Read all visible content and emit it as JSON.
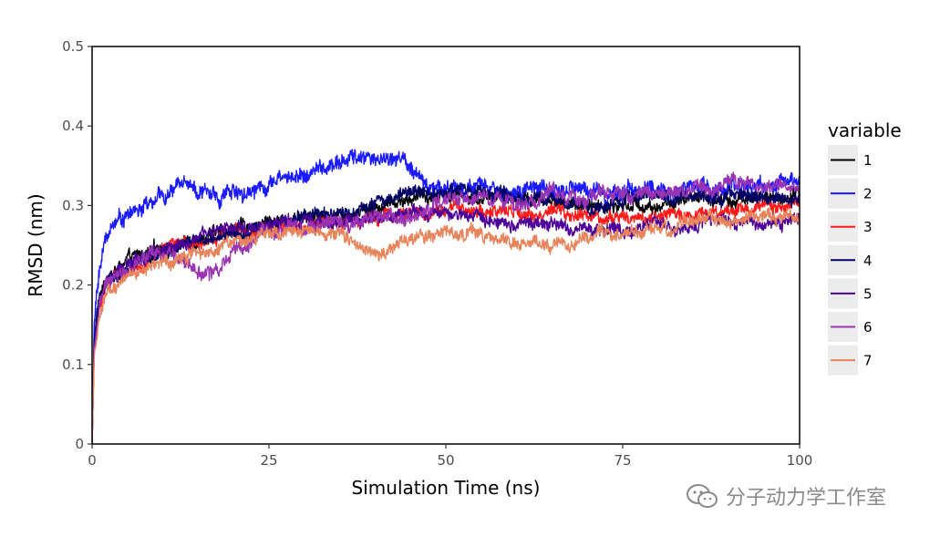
{
  "chart_data": {
    "type": "line",
    "title": "",
    "xlabel": "Simulation Time (ns)",
    "ylabel": "RMSD (nm)",
    "xlim": [
      0,
      100
    ],
    "ylim": [
      0,
      0.5
    ],
    "xticks": [
      0,
      25,
      50,
      75,
      100
    ],
    "xtick_labels": [
      "0",
      "25",
      "50",
      "75",
      "100"
    ],
    "yticks": [
      0,
      0.1,
      0.2,
      0.3,
      0.4,
      0.5
    ],
    "ytick_labels": [
      "0",
      "0.1",
      "0.2",
      "0.3",
      "0.4",
      "0.5"
    ],
    "grid": false,
    "legend": {
      "title": "variable",
      "position": "right"
    },
    "series": [
      {
        "name": "1",
        "color": "#000000",
        "noise": 0.008,
        "x": [
          0,
          0.3,
          1,
          2,
          5,
          10,
          15,
          20,
          25,
          30,
          35,
          40,
          45,
          50,
          55,
          60,
          65,
          70,
          75,
          80,
          85,
          90,
          95,
          100
        ],
        "y": [
          0,
          0.13,
          0.18,
          0.21,
          0.23,
          0.245,
          0.26,
          0.27,
          0.28,
          0.285,
          0.29,
          0.3,
          0.31,
          0.315,
          0.31,
          0.31,
          0.305,
          0.3,
          0.3,
          0.3,
          0.305,
          0.31,
          0.31,
          0.31
        ]
      },
      {
        "name": "2",
        "color": "#1a1aff",
        "noise": 0.01,
        "x": [
          0,
          0.3,
          1,
          2,
          3,
          5,
          8,
          10,
          12,
          13,
          15,
          18,
          20,
          22,
          25,
          30,
          35,
          37,
          40,
          44,
          46,
          48,
          50,
          55,
          60,
          65,
          70,
          75,
          80,
          85,
          90,
          95,
          100
        ],
        "y": [
          0,
          0.15,
          0.22,
          0.26,
          0.28,
          0.29,
          0.3,
          0.31,
          0.32,
          0.34,
          0.32,
          0.31,
          0.32,
          0.32,
          0.33,
          0.34,
          0.35,
          0.36,
          0.36,
          0.36,
          0.33,
          0.325,
          0.325,
          0.32,
          0.315,
          0.32,
          0.32,
          0.32,
          0.32,
          0.32,
          0.325,
          0.325,
          0.33
        ]
      },
      {
        "name": "3",
        "color": "#ff1a1a",
        "noise": 0.008,
        "x": [
          0,
          0.3,
          1,
          2,
          5,
          10,
          15,
          20,
          25,
          30,
          35,
          40,
          45,
          50,
          55,
          60,
          65,
          70,
          75,
          80,
          85,
          90,
          95,
          100
        ],
        "y": [
          0,
          0.12,
          0.17,
          0.2,
          0.22,
          0.24,
          0.255,
          0.265,
          0.27,
          0.275,
          0.28,
          0.285,
          0.29,
          0.295,
          0.295,
          0.29,
          0.29,
          0.285,
          0.285,
          0.285,
          0.29,
          0.295,
          0.3,
          0.3
        ]
      },
      {
        "name": "4",
        "color": "#000066",
        "noise": 0.008,
        "x": [
          0,
          0.3,
          1,
          2,
          5,
          10,
          15,
          20,
          25,
          30,
          35,
          40,
          45,
          50,
          55,
          60,
          65,
          70,
          75,
          80,
          85,
          90,
          95,
          100
        ],
        "y": [
          0,
          0.13,
          0.18,
          0.2,
          0.22,
          0.24,
          0.255,
          0.265,
          0.275,
          0.285,
          0.29,
          0.3,
          0.315,
          0.32,
          0.315,
          0.31,
          0.305,
          0.3,
          0.305,
          0.31,
          0.31,
          0.315,
          0.31,
          0.305
        ]
      },
      {
        "name": "5",
        "color": "#4d0099",
        "noise": 0.008,
        "x": [
          0,
          0.3,
          1,
          2,
          5,
          10,
          15,
          20,
          25,
          30,
          35,
          40,
          45,
          50,
          55,
          60,
          65,
          70,
          75,
          80,
          85,
          90,
          95,
          100
        ],
        "y": [
          0,
          0.12,
          0.17,
          0.2,
          0.225,
          0.245,
          0.26,
          0.27,
          0.275,
          0.28,
          0.28,
          0.285,
          0.29,
          0.29,
          0.285,
          0.28,
          0.275,
          0.27,
          0.27,
          0.275,
          0.28,
          0.28,
          0.28,
          0.28
        ]
      },
      {
        "name": "6",
        "color": "#9933b3",
        "noise": 0.009,
        "x": [
          0,
          0.3,
          1,
          2,
          5,
          10,
          13,
          15,
          17,
          18,
          20,
          25,
          30,
          35,
          40,
          45,
          50,
          55,
          60,
          65,
          70,
          75,
          80,
          85,
          90,
          92,
          95,
          100
        ],
        "y": [
          0,
          0.12,
          0.17,
          0.2,
          0.22,
          0.24,
          0.23,
          0.22,
          0.215,
          0.22,
          0.25,
          0.265,
          0.275,
          0.28,
          0.285,
          0.29,
          0.3,
          0.305,
          0.305,
          0.31,
          0.31,
          0.315,
          0.315,
          0.32,
          0.32,
          0.33,
          0.325,
          0.32
        ]
      },
      {
        "name": "7",
        "color": "#e8835a",
        "noise": 0.008,
        "x": [
          0,
          0.3,
          1,
          2,
          5,
          10,
          15,
          20,
          25,
          30,
          35,
          40,
          45,
          50,
          55,
          60,
          65,
          70,
          75,
          80,
          85,
          90,
          95,
          100
        ],
        "y": [
          0,
          0.11,
          0.16,
          0.19,
          0.21,
          0.23,
          0.245,
          0.255,
          0.26,
          0.265,
          0.26,
          0.245,
          0.255,
          0.265,
          0.265,
          0.255,
          0.25,
          0.26,
          0.265,
          0.27,
          0.275,
          0.28,
          0.285,
          0.285
        ]
      }
    ]
  },
  "watermark": {
    "text": "分子动力学工作室",
    "icon": "wechat-icon"
  }
}
